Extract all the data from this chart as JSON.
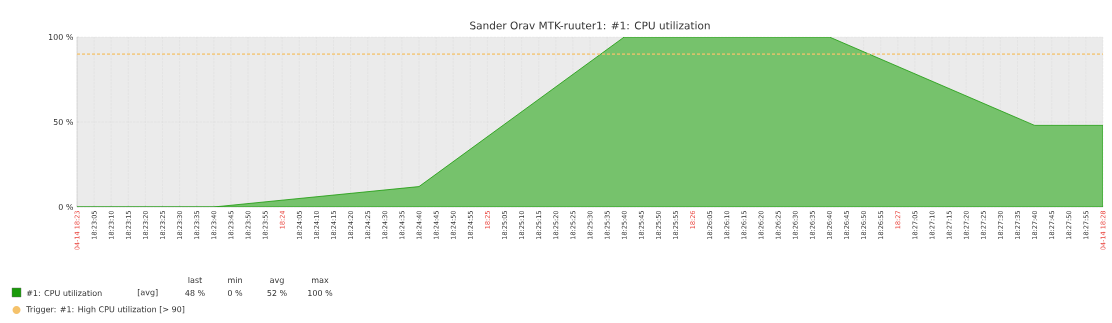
{
  "chart_data": {
    "type": "area",
    "title": "Sander Orav MTK-ruuter1: #1: CPU utilization",
    "series": [
      {
        "name": "#1: CPU utilization",
        "color": "#1a9a0a",
        "x": [
          18.383333,
          18.394444,
          18.411111,
          18.427778,
          18.444444,
          18.461111,
          18.466667
        ],
        "values": [
          0,
          0,
          12,
          100,
          100,
          48,
          48
        ]
      }
    ],
    "xlim": [
      18.383333,
      18.466667
    ],
    "ylim": [
      0,
      100
    ],
    "yticks": [
      {
        "value": 0,
        "label": "0 %"
      },
      {
        "value": 50,
        "label": "50 %"
      },
      {
        "value": 100,
        "label": "100 %"
      }
    ],
    "xticks": [
      {
        "value": 18.383333,
        "label": "04-14 18:23"
      },
      {
        "value": 18.384722,
        "label": "18:23:05"
      },
      {
        "value": 18.386111,
        "label": "18:23:10"
      },
      {
        "value": 18.3875,
        "label": "18:23:15"
      },
      {
        "value": 18.388889,
        "label": "18:23:20"
      },
      {
        "value": 18.390278,
        "label": "18:23:25"
      },
      {
        "value": 18.391667,
        "label": "18:23:30"
      },
      {
        "value": 18.393056,
        "label": "18:23:35"
      },
      {
        "value": 18.394444,
        "label": "18:23:40"
      },
      {
        "value": 18.395833,
        "label": "18:23:45"
      },
      {
        "value": 18.397222,
        "label": "18:23:50"
      },
      {
        "value": 18.398611,
        "label": "18:23:55"
      },
      {
        "value": 18.4,
        "label": "18:24"
      },
      {
        "value": 18.401389,
        "label": "18:24:05"
      },
      {
        "value": 18.402778,
        "label": "18:24:10"
      },
      {
        "value": 18.404167,
        "label": "18:24:15"
      },
      {
        "value": 18.405556,
        "label": "18:24:20"
      },
      {
        "value": 18.406944,
        "label": "18:24:25"
      },
      {
        "value": 18.408333,
        "label": "18:24:30"
      },
      {
        "value": 18.409722,
        "label": "18:24:35"
      },
      {
        "value": 18.411111,
        "label": "18:24:40"
      },
      {
        "value": 18.4125,
        "label": "18:24:45"
      },
      {
        "value": 18.413889,
        "label": "18:24:50"
      },
      {
        "value": 18.415278,
        "label": "18:24:55"
      },
      {
        "value": 18.416667,
        "label": "18:25"
      },
      {
        "value": 18.418056,
        "label": "18:25:05"
      },
      {
        "value": 18.419444,
        "label": "18:25:10"
      },
      {
        "value": 18.420833,
        "label": "18:25:15"
      },
      {
        "value": 18.422222,
        "label": "18:25:20"
      },
      {
        "value": 18.423611,
        "label": "18:25:25"
      },
      {
        "value": 18.425,
        "label": "18:25:30"
      },
      {
        "value": 18.426389,
        "label": "18:25:35"
      },
      {
        "value": 18.427778,
        "label": "18:25:40"
      },
      {
        "value": 18.429167,
        "label": "18:25:45"
      },
      {
        "value": 18.430556,
        "label": "18:25:50"
      },
      {
        "value": 18.431944,
        "label": "18:25:55"
      },
      {
        "value": 18.433333,
        "label": "18:26"
      },
      {
        "value": 18.434722,
        "label": "18:26:05"
      },
      {
        "value": 18.436111,
        "label": "18:26:10"
      },
      {
        "value": 18.4375,
        "label": "18:26:15"
      },
      {
        "value": 18.438889,
        "label": "18:26:20"
      },
      {
        "value": 18.440278,
        "label": "18:26:25"
      },
      {
        "value": 18.441667,
        "label": "18:26:30"
      },
      {
        "value": 18.443056,
        "label": "18:26:35"
      },
      {
        "value": 18.444444,
        "label": "18:26:40"
      },
      {
        "value": 18.445833,
        "label": "18:26:45"
      },
      {
        "value": 18.447222,
        "label": "18:26:50"
      },
      {
        "value": 18.448611,
        "label": "18:26:55"
      },
      {
        "value": 18.45,
        "label": "18:27"
      },
      {
        "value": 18.451389,
        "label": "18:27:05"
      },
      {
        "value": 18.452778,
        "label": "18:27:10"
      },
      {
        "value": 18.454167,
        "label": "18:27:15"
      },
      {
        "value": 18.455556,
        "label": "18:27:20"
      },
      {
        "value": 18.456944,
        "label": "18:27:25"
      },
      {
        "value": 18.458333,
        "label": "18:27:30"
      },
      {
        "value": 18.459722,
        "label": "18:27:35"
      },
      {
        "value": 18.461111,
        "label": "18:27:40"
      },
      {
        "value": 18.4625,
        "label": "18:27:45"
      },
      {
        "value": 18.463889,
        "label": "18:27:50"
      },
      {
        "value": 18.465278,
        "label": "18:27:55"
      },
      {
        "value": 18.466667,
        "label": "04-14 18:28"
      }
    ],
    "grid": true,
    "legend": "bottom",
    "ref_lines": [
      {
        "axis": "y",
        "value": 90,
        "label": "Trigger: #1: High CPU utilization [> 90]",
        "color": "#f5c26b",
        "line_style": "dashed"
      }
    ],
    "annotations": [
      "last",
      "min",
      "avg",
      "max",
      "[avg]",
      "48 %",
      "0 %",
      "52 %",
      "100 %"
    ]
  }
}
